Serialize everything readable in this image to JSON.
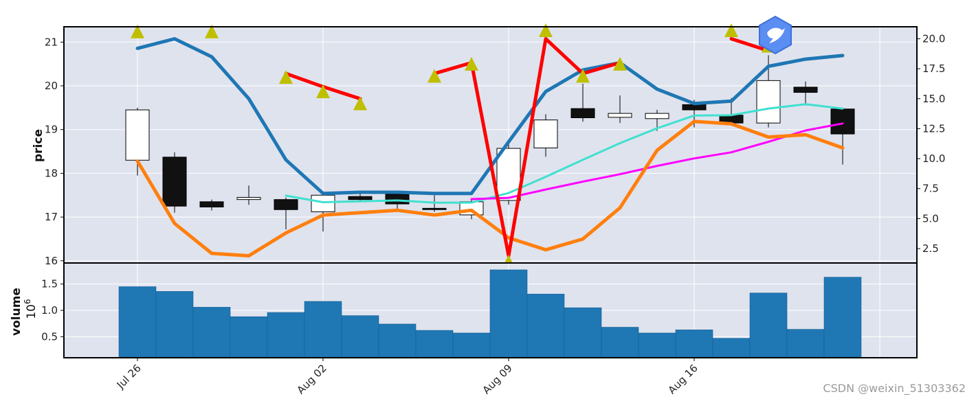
{
  "chart_data": {
    "type": "candlestick",
    "date_ticks": [
      "Jul 26",
      "Aug 02",
      "Aug 09",
      "Aug 16"
    ],
    "date_tick_index": [
      0,
      5,
      10,
      15
    ],
    "price_panel": {
      "ylabel": "price",
      "ylim": [
        15.95,
        21.35
      ],
      "yticks": [
        16,
        17,
        18,
        19,
        20,
        21
      ],
      "right_ylim": [
        1.3,
        21.0
      ],
      "right_yticks": [
        "2.5",
        "5.0",
        "7.5",
        "10.0",
        "12.5",
        "15.0",
        "17.5",
        "20.0"
      ],
      "candles": [
        {
          "o": 18.3,
          "h": 19.5,
          "l": 17.95,
          "c": 19.45
        },
        {
          "o": 18.37,
          "h": 18.48,
          "l": 17.1,
          "c": 17.25
        },
        {
          "o": 17.35,
          "h": 17.4,
          "l": 17.15,
          "c": 17.23
        },
        {
          "o": 17.4,
          "h": 17.72,
          "l": 17.28,
          "c": 17.45
        },
        {
          "o": 17.4,
          "h": 17.45,
          "l": 16.72,
          "c": 17.17
        },
        {
          "o": 17.12,
          "h": 17.55,
          "l": 16.67,
          "c": 17.5
        },
        {
          "o": 17.47,
          "h": 17.6,
          "l": 17.35,
          "c": 17.4
        },
        {
          "o": 17.52,
          "h": 17.58,
          "l": 17.13,
          "c": 17.3
        },
        {
          "o": 17.2,
          "h": 17.5,
          "l": 17.12,
          "c": 17.17
        },
        {
          "o": 17.05,
          "h": 17.4,
          "l": 16.95,
          "c": 17.35
        },
        {
          "o": 17.38,
          "h": 18.75,
          "l": 17.28,
          "c": 18.57
        },
        {
          "o": 18.58,
          "h": 19.35,
          "l": 18.38,
          "c": 19.22
        },
        {
          "o": 19.48,
          "h": 20.05,
          "l": 19.18,
          "c": 19.27
        },
        {
          "o": 19.28,
          "h": 19.78,
          "l": 19.15,
          "c": 19.37
        },
        {
          "o": 19.25,
          "h": 19.45,
          "l": 18.97,
          "c": 19.37
        },
        {
          "o": 19.57,
          "h": 19.68,
          "l": 19.05,
          "c": 19.45
        },
        {
          "o": 19.33,
          "h": 19.72,
          "l": 19.13,
          "c": 19.15
        },
        {
          "o": 19.15,
          "h": 20.7,
          "l": 19.05,
          "c": 20.12
        },
        {
          "o": 19.97,
          "h": 20.1,
          "l": 19.55,
          "c": 19.85
        },
        {
          "o": 19.47,
          "h": 19.5,
          "l": 18.2,
          "c": 18.9
        }
      ],
      "right_axis_lines": [
        {
          "name": "",
          "color": "#1f77b4",
          "width": 5,
          "values": [
            19.2,
            20.0,
            18.5,
            15.0,
            9.9,
            7.1,
            7.2,
            7.2,
            7.1,
            7.1,
            11.4,
            15.6,
            17.4,
            18.0,
            15.8,
            14.6,
            14.8,
            17.7,
            18.3,
            18.6
          ]
        },
        {
          "name": "",
          "color": "#ff7f0e",
          "width": 5,
          "values": [
            9.8,
            4.6,
            2.1,
            1.9,
            3.8,
            5.3,
            5.5,
            5.7,
            5.3,
            5.7,
            3.4,
            2.4,
            3.3,
            5.9,
            10.7,
            13.1,
            12.9,
            11.8,
            12.0,
            10.9
          ]
        },
        {
          "name": "",
          "color": "#ff0000",
          "width": 5,
          "values": [
            null,
            null,
            null,
            null,
            17.1,
            16.0,
            15.0,
            null,
            17.1,
            18.0,
            1.9,
            20.0,
            17.1,
            18.0,
            null,
            null,
            20.0,
            19.0,
            null,
            null
          ]
        }
      ],
      "price_axis_lines": [
        {
          "name": "",
          "color": "#40e0d0",
          "width": 3,
          "values": [
            null,
            null,
            null,
            null,
            17.49,
            17.34,
            17.36,
            17.38,
            17.33,
            17.33,
            17.55,
            17.92,
            18.31,
            18.69,
            19.03,
            19.32,
            19.33,
            19.48,
            19.58,
            19.48
          ]
        },
        {
          "name": "",
          "color": "#ff00ff",
          "width": 3,
          "values": [
            null,
            null,
            null,
            null,
            null,
            null,
            null,
            null,
            null,
            17.41,
            17.44,
            17.63,
            17.81,
            17.98,
            18.17,
            18.34,
            18.48,
            18.72,
            18.98,
            19.14
          ]
        }
      ],
      "triangle_markers": {
        "color": "#bfbf00",
        "values": [
          20.5,
          null,
          20.5,
          null,
          16.7,
          15.5,
          14.5,
          null,
          16.8,
          17.8,
          1.3,
          20.6,
          16.8,
          17.8,
          null,
          null,
          20.6,
          19.3,
          null,
          null
        ]
      }
    },
    "volume_panel": {
      "ylabel": "volume",
      "exponent_label": "10",
      "exponent_sup": "6",
      "ylim": [
        0.1,
        1.9
      ],
      "yticks": [
        "0.5",
        "1.0",
        "1.5"
      ],
      "ytick_values": [
        0.5,
        1.0,
        1.5
      ],
      "color": "#1f77b4",
      "values": [
        1.45,
        1.36,
        1.06,
        0.88,
        0.96,
        1.17,
        0.9,
        0.74,
        0.62,
        0.57,
        1.77,
        1.31,
        1.05,
        0.68,
        0.57,
        0.63,
        0.47,
        1.33,
        0.64,
        1.63
      ]
    }
  },
  "watermark": {
    "text": "CSDN @weixin_51303362",
    "icon": "bird-hexagon-icon"
  }
}
